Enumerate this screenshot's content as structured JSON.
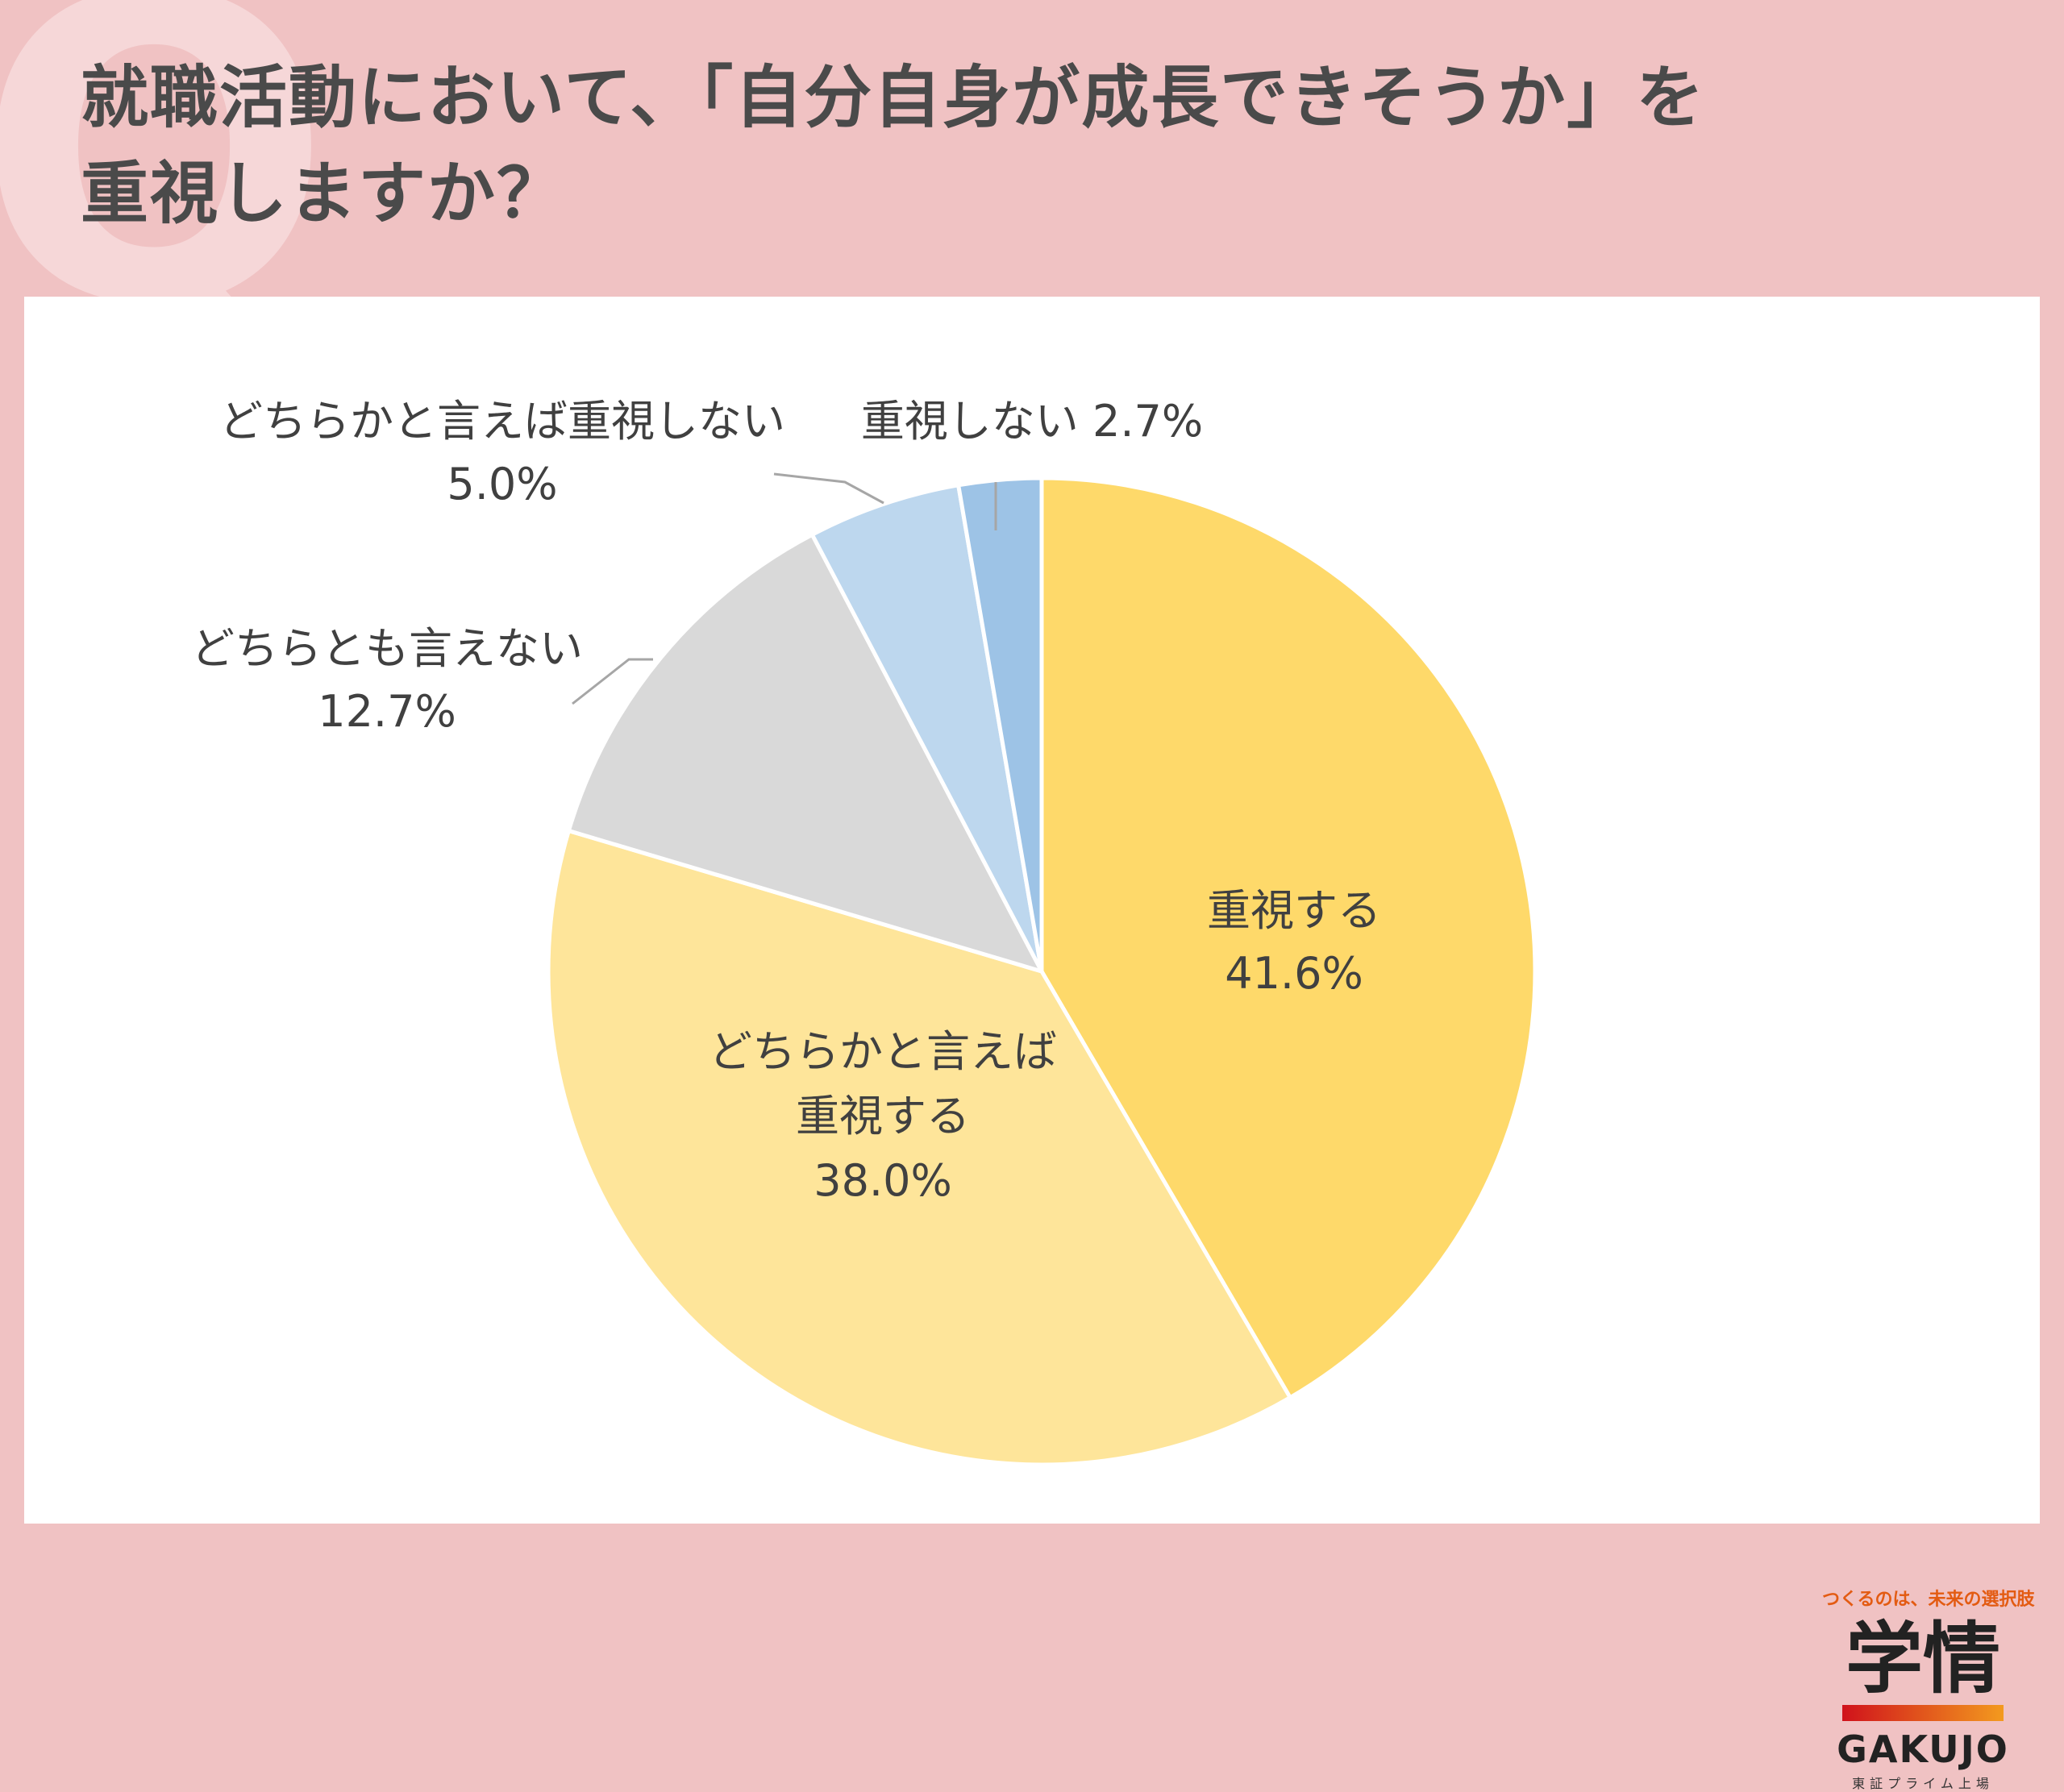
{
  "title": {
    "line1": "就職活動において、「自分自身が成長できそうか」を",
    "line2": "重視しますか？"
  },
  "chart_data": {
    "type": "pie",
    "start_angle_deg": 0,
    "direction": "clockwise",
    "slices": [
      {
        "label": "重視する",
        "value": 41.6,
        "value_text": "41.6%",
        "color": "#fed96a",
        "label_position": "inside"
      },
      {
        "label": "どちらかと言えば重視する",
        "label_lines": [
          "どちらかと言えば",
          "重視する"
        ],
        "value": 38.0,
        "value_text": "38.0%",
        "color": "#fee59a",
        "label_position": "inside"
      },
      {
        "label": "どちらとも言えない",
        "value": 12.7,
        "value_text": "12.7%",
        "color": "#d9d9d9",
        "label_position": "outside"
      },
      {
        "label": "どちらかと言えば重視しない",
        "value": 5.0,
        "value_text": "5.0%",
        "color": "#bdd7ee",
        "label_position": "outside"
      },
      {
        "label": "重視しない",
        "value": 2.7,
        "value_text": "2.7%",
        "color": "#9dc3e6",
        "label_position": "outside"
      }
    ]
  },
  "logo": {
    "tagline": "つくるのは、未来の選択肢",
    "kanji": "学情",
    "english": "GAKUJO",
    "sub": "東証プライム上場"
  }
}
